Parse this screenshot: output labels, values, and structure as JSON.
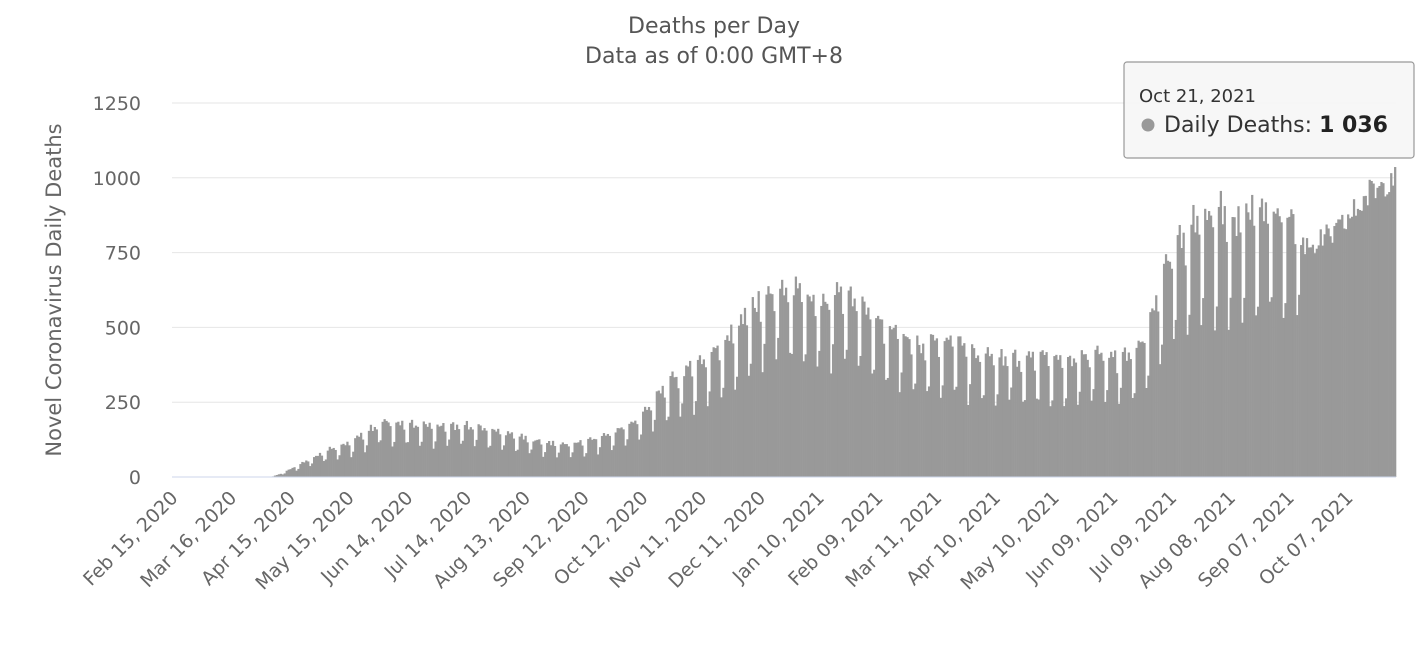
{
  "chart_data": {
    "type": "bar",
    "title": "Deaths per Day",
    "subtitle": "Data as of 0:00 GMT+8",
    "ylabel": "Novel Coronavirus Daily Deaths",
    "xlabel": "",
    "ylim": [
      0,
      1250
    ],
    "yticks": [
      "0",
      "250",
      "500",
      "750",
      "1000",
      "1250"
    ],
    "grid": true,
    "bar_color": "#999999",
    "x_start": "Feb 15, 2020",
    "x_end": "Oct 21, 2021",
    "xtick_labels": [
      "Feb 15, 2020",
      "Mar 16, 2020",
      "Apr 15, 2020",
      "May 15, 2020",
      "Jun 14, 2020",
      "Jul 14, 2020",
      "Aug 13, 2020",
      "Sep 12, 2020",
      "Oct 12, 2020",
      "Nov 11, 2020",
      "Dec 11, 2020",
      "Jan 10, 2021",
      "Feb 09, 2021",
      "Mar 11, 2021",
      "Apr 10, 2021",
      "May 10, 2021",
      "Jun 09, 2021",
      "Jul 09, 2021",
      "Aug 08, 2021",
      "Sep 07, 2021",
      "Oct 07, 2021"
    ],
    "xtick_day_offsets": [
      0,
      30,
      60,
      90,
      120,
      150,
      180,
      210,
      240,
      270,
      300,
      330,
      360,
      390,
      420,
      450,
      480,
      510,
      540,
      570,
      600
    ],
    "series": [
      {
        "name": "Daily Deaths",
        "weekly_average_anchors": [
          [
            0,
            0
          ],
          [
            50,
            0
          ],
          [
            55,
            10
          ],
          [
            60,
            25
          ],
          [
            65,
            40
          ],
          [
            70,
            55
          ],
          [
            75,
            70
          ],
          [
            80,
            85
          ],
          [
            85,
            95
          ],
          [
            90,
            100
          ],
          [
            95,
            120
          ],
          [
            100,
            140
          ],
          [
            105,
            160
          ],
          [
            110,
            165
          ],
          [
            115,
            160
          ],
          [
            120,
            155
          ],
          [
            125,
            160
          ],
          [
            130,
            155
          ],
          [
            135,
            150
          ],
          [
            140,
            155
          ],
          [
            145,
            150
          ],
          [
            150,
            155
          ],
          [
            155,
            150
          ],
          [
            160,
            145
          ],
          [
            165,
            140
          ],
          [
            170,
            130
          ],
          [
            175,
            125
          ],
          [
            180,
            115
          ],
          [
            185,
            110
          ],
          [
            190,
            105
          ],
          [
            195,
            100
          ],
          [
            200,
            100
          ],
          [
            205,
            100
          ],
          [
            210,
            105
          ],
          [
            215,
            115
          ],
          [
            220,
            125
          ],
          [
            225,
            135
          ],
          [
            230,
            150
          ],
          [
            235,
            165
          ],
          [
            240,
            190
          ],
          [
            245,
            230
          ],
          [
            250,
            260
          ],
          [
            255,
            290
          ],
          [
            260,
            310
          ],
          [
            265,
            330
          ],
          [
            270,
            350
          ],
          [
            275,
            370
          ],
          [
            280,
            400
          ],
          [
            285,
            430
          ],
          [
            290,
            460
          ],
          [
            295,
            500
          ],
          [
            300,
            530
          ],
          [
            305,
            550
          ],
          [
            310,
            560
          ],
          [
            315,
            565
          ],
          [
            320,
            550
          ],
          [
            325,
            530
          ],
          [
            330,
            510
          ],
          [
            335,
            520
          ],
          [
            340,
            545
          ],
          [
            345,
            550
          ],
          [
            350,
            530
          ],
          [
            355,
            500
          ],
          [
            360,
            470
          ],
          [
            365,
            450
          ],
          [
            370,
            430
          ],
          [
            375,
            410
          ],
          [
            380,
            400
          ],
          [
            385,
            400
          ],
          [
            390,
            405
          ],
          [
            395,
            415
          ],
          [
            400,
            410
          ],
          [
            405,
            390
          ],
          [
            410,
            370
          ],
          [
            415,
            360
          ],
          [
            420,
            360
          ],
          [
            425,
            360
          ],
          [
            430,
            355
          ],
          [
            435,
            355
          ],
          [
            440,
            360
          ],
          [
            445,
            355
          ],
          [
            450,
            350
          ],
          [
            455,
            350
          ],
          [
            460,
            355
          ],
          [
            465,
            360
          ],
          [
            470,
            365
          ],
          [
            475,
            365
          ],
          [
            480,
            360
          ],
          [
            485,
            360
          ],
          [
            490,
            370
          ],
          [
            495,
            400
          ],
          [
            500,
            480
          ],
          [
            503,
            560
          ],
          [
            506,
            610
          ],
          [
            510,
            650
          ],
          [
            515,
            710
          ],
          [
            520,
            750
          ],
          [
            525,
            775
          ],
          [
            530,
            780
          ],
          [
            535,
            785
          ],
          [
            540,
            785
          ],
          [
            545,
            780
          ],
          [
            550,
            785
          ],
          [
            555,
            790
          ],
          [
            560,
            795
          ],
          [
            565,
            790
          ],
          [
            570,
            785
          ],
          [
            575,
            780
          ],
          [
            580,
            780
          ],
          [
            585,
            785
          ],
          [
            590,
            800
          ],
          [
            595,
            820
          ],
          [
            600,
            860
          ],
          [
            605,
            900
          ],
          [
            610,
            940
          ],
          [
            615,
            970
          ],
          [
            620,
            1000
          ],
          [
            624,
            1036
          ]
        ]
      }
    ],
    "tooltip": {
      "date": "Oct 21, 2021",
      "series_name": "Daily Deaths",
      "separator": ": ",
      "value_text": "1 036",
      "value": 1036,
      "marker_color": "#999999"
    }
  }
}
